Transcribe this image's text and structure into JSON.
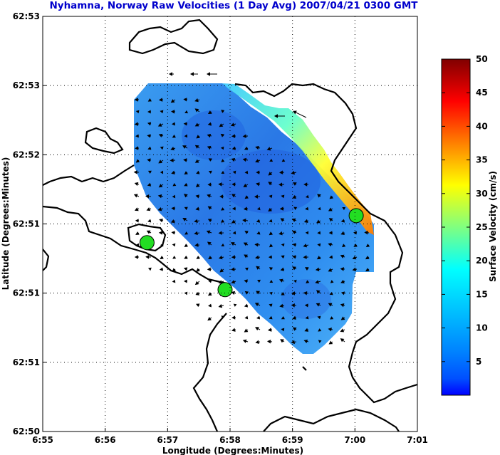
{
  "chart_data": {
    "type": "heatmap",
    "title": "Nyhamna, Norway Raw Velocities (1 Day Avg) 2007/04/21 0300 GMT",
    "xlabel": "Longitude (Degrees:Minutes)",
    "ylabel": "Latitude (Degrees:Minutes)",
    "x_ticks": [
      "6:55",
      "6:56",
      "6:57",
      "6:58",
      "6:59",
      "7:00",
      "7:01"
    ],
    "y_ticks": [
      "62:53",
      "62:53",
      "62:52",
      "62:51",
      "62:51",
      "62:51",
      "62:50"
    ],
    "colorbar": {
      "label": "Surface Velocity (cm/s)",
      "ticks": [
        5,
        10,
        15,
        20,
        25,
        30,
        35,
        40,
        45,
        50
      ],
      "range": [
        0,
        50
      ],
      "colormap": "jet"
    },
    "grid": true,
    "stations": [
      {
        "lon_min": 56.67,
        "lat_index": 3.27
      },
      {
        "lon_min": 57.92,
        "lat_index": 3.95
      },
      {
        "lon_min": 60.02,
        "lat_index": 2.88
      }
    ],
    "station_color": "#22dd22"
  }
}
